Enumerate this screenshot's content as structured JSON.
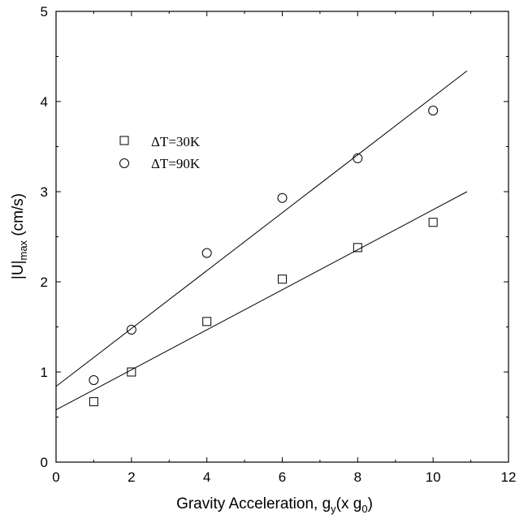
{
  "chart_data": {
    "type": "scatter",
    "title": "",
    "xlabel": "Gravity Acceleration, g_y(x g_0)",
    "xlabel_parts": {
      "main": "Gravity Acceleration, g",
      "sub1": "y",
      "mid": "(x g",
      "sub2": "0",
      "end": ")"
    },
    "ylabel": "|U|max (cm/s)",
    "ylabel_parts": {
      "main": "|U|",
      "sub": "max",
      "end": " (cm/s)"
    },
    "xlim": [
      0,
      12
    ],
    "ylim": [
      0,
      5
    ],
    "xticks": [
      "0",
      "2",
      "4",
      "6",
      "8",
      "10",
      "12"
    ],
    "yticks": [
      "0",
      "1",
      "2",
      "3",
      "4",
      "5"
    ],
    "grid": false,
    "legend_position": "upper-left",
    "series": [
      {
        "name": "ΔT=30K",
        "marker": "square",
        "x": [
          1,
          2,
          4,
          6,
          8,
          10
        ],
        "y": [
          0.67,
          1.0,
          1.56,
          2.03,
          2.38,
          2.66
        ],
        "fit_line": {
          "x": [
            0,
            10.9
          ],
          "y": [
            0.58,
            3.0
          ]
        }
      },
      {
        "name": "ΔT=90K",
        "marker": "circle",
        "x": [
          1,
          2,
          4,
          6,
          8,
          10
        ],
        "y": [
          0.91,
          1.47,
          2.32,
          2.93,
          3.37,
          3.9
        ],
        "fit_line": {
          "x": [
            0,
            10.9
          ],
          "y": [
            0.84,
            4.34
          ]
        }
      }
    ]
  }
}
